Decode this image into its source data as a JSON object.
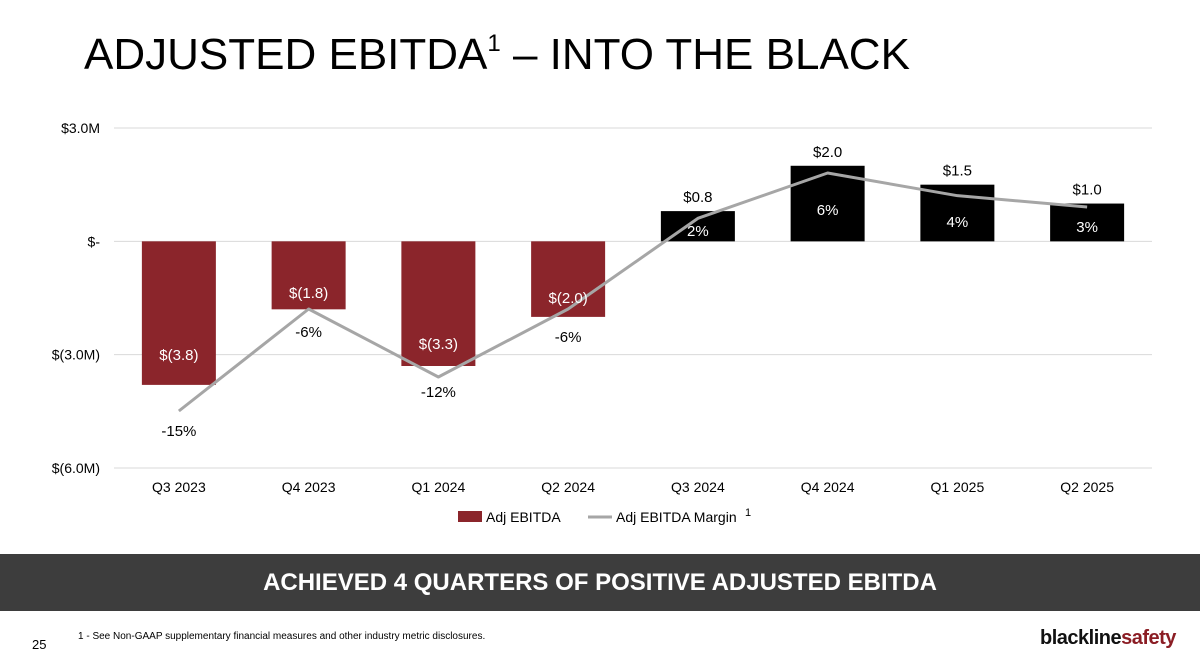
{
  "slide": {
    "title_main": "ADJUSTED EBITDA",
    "title_sup": "1",
    "title_rest": " – INTO THE BLACK",
    "banner": "ACHIEVED 4 QUARTERS OF POSITIVE ADJUSTED EBITDA",
    "footnote": "1 - See Non-GAAP supplementary financial measures and other industry metric disclosures.",
    "page_number": "25",
    "logo_part1": "blackline",
    "logo_part2": "safety"
  },
  "chart_data": {
    "type": "bar",
    "title": "",
    "categories": [
      "Q3 2023",
      "Q4 2023",
      "Q1 2024",
      "Q2 2024",
      "Q3 2024",
      "Q4 2024",
      "Q1 2025",
      "Q2 2025"
    ],
    "ylim": [
      -6.0,
      3.0
    ],
    "y_ticks": [
      {
        "value": 3.0,
        "label": "$3.0M"
      },
      {
        "value": 0,
        "label": "$-"
      },
      {
        "value": -3.0,
        "label": "$(3.0M)"
      },
      {
        "value": -6.0,
        "label": "$(6.0M)"
      }
    ],
    "grid": true,
    "legend_position": "bottom",
    "series": [
      {
        "name": "Adj EBITDA",
        "kind": "bar",
        "values": [
          -3.8,
          -1.8,
          -3.3,
          -2.0,
          0.8,
          2.0,
          1.5,
          1.0
        ],
        "labels": [
          "$(3.8)",
          "$(1.8)",
          "$(3.3)",
          "$(2.0)",
          "$0.8",
          "$2.0",
          "$1.5",
          "$1.0"
        ],
        "negative_color": "#8b252b",
        "positive_color": "#000000"
      },
      {
        "name": "Adj EBITDA Margin",
        "name_sup": "1",
        "kind": "line",
        "values": [
          -15,
          -6,
          -12,
          -6,
          2,
          6,
          4,
          3
        ],
        "labels": [
          "-15%",
          "-6%",
          "-12%",
          "-6%",
          "2%",
          "6%",
          "4%",
          "3%"
        ],
        "color": "#a6a6a6"
      }
    ]
  }
}
